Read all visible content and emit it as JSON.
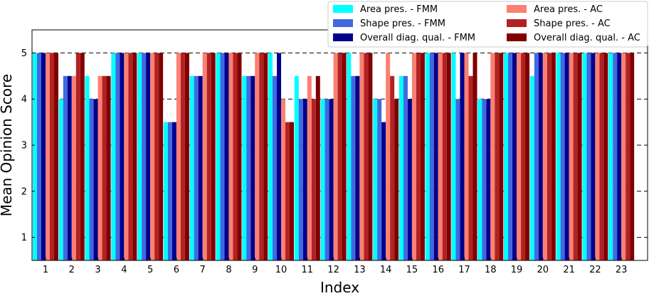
{
  "chart_data": {
    "type": "bar",
    "title": "",
    "xlabel": "Index",
    "ylabel": "Mean Opinion Score",
    "ylim": [
      0.5,
      5.5
    ],
    "yticks": [
      1,
      2,
      3,
      4,
      5
    ],
    "grid": "horizontal dashed",
    "legend_position": "top-right",
    "categories": [
      "1",
      "2",
      "3",
      "4",
      "5",
      "6",
      "7",
      "8",
      "9",
      "10",
      "11",
      "12",
      "13",
      "14",
      "15",
      "16",
      "17",
      "18",
      "19",
      "20",
      "21",
      "22",
      "23"
    ],
    "series": [
      {
        "name": "Area pres. - FMM",
        "color": "#00FFFF",
        "values": [
          5,
          4,
          4.5,
          5,
          5,
          3.5,
          4.5,
          5,
          4.5,
          5,
          4.5,
          4,
          5,
          4,
          4.5,
          5,
          5,
          4,
          5,
          4.5,
          5,
          5,
          5
        ]
      },
      {
        "name": "Shape pres. - FMM",
        "color": "#4169E1",
        "values": [
          5,
          4.5,
          4,
          5,
          5,
          3.5,
          4.5,
          5,
          4.5,
          4.5,
          4,
          4,
          4.5,
          4,
          4.5,
          5,
          4,
          4,
          5,
          5,
          5,
          5,
          5
        ]
      },
      {
        "name": "Overall diag. qual. - FMM",
        "color": "#00008B",
        "values": [
          5,
          4.5,
          4,
          5,
          5,
          3.5,
          4.5,
          5,
          4.5,
          5,
          4,
          4,
          4.5,
          3.5,
          4,
          5,
          5,
          4,
          5,
          5,
          5,
          5,
          5
        ]
      },
      {
        "name": "Area pres. - AC",
        "color": "#FA8072",
        "values": [
          5,
          4.5,
          4.5,
          5,
          5,
          5,
          5,
          5,
          5,
          4,
          4.5,
          5,
          5,
          5,
          5,
          5,
          5,
          5,
          5,
          5,
          5,
          5,
          5
        ]
      },
      {
        "name": "Shape pres. - AC",
        "color": "#B22222",
        "values": [
          5,
          5,
          4.5,
          5,
          5,
          5,
          5,
          5,
          5,
          3.5,
          4,
          5,
          5,
          4.5,
          5,
          5,
          4.5,
          5,
          5,
          5,
          5,
          5,
          5
        ]
      },
      {
        "name": "Overall diag. qual. - AC",
        "color": "#800000",
        "values": [
          5,
          5,
          4.5,
          5,
          5,
          5,
          5,
          5,
          5,
          3.5,
          4.5,
          5,
          5,
          4,
          5,
          5,
          5,
          5,
          5,
          5,
          5,
          5,
          5
        ]
      }
    ]
  }
}
